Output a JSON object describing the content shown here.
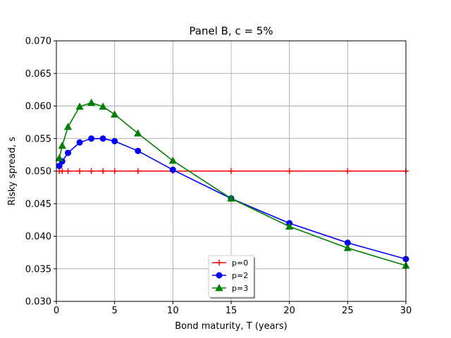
{
  "chart_data": {
    "type": "line",
    "title": "Panel B, c = 5%",
    "xlabel": "Bond maturity, T (years)",
    "ylabel": "Risky spread, s",
    "xlim": [
      0,
      30
    ],
    "ylim": [
      0.03,
      0.07
    ],
    "xticks": [
      0,
      5,
      10,
      15,
      20,
      25,
      30
    ],
    "xtick_labels": [
      "0",
      "5",
      "10",
      "15",
      "20",
      "25",
      "30"
    ],
    "yticks": [
      0.03,
      0.035,
      0.04,
      0.045,
      0.05,
      0.055,
      0.06,
      0.065,
      0.07
    ],
    "ytick_labels": [
      "0.030",
      "0.035",
      "0.040",
      "0.045",
      "0.050",
      "0.055",
      "0.060",
      "0.065",
      "0.070"
    ],
    "grid": true,
    "legend_position": "bottom-center",
    "series": [
      {
        "name": "p=0",
        "color": "#ff0000",
        "marker": "plus",
        "x": [
          0.25,
          0.5,
          1,
          2,
          3,
          4,
          5,
          7,
          10,
          15,
          20,
          25,
          30
        ],
        "y": [
          0.05,
          0.05,
          0.05,
          0.05,
          0.05,
          0.05,
          0.05,
          0.05,
          0.05,
          0.05,
          0.05,
          0.05,
          0.05
        ]
      },
      {
        "name": "p=2",
        "color": "#0000ff",
        "marker": "circle",
        "x": [
          0.25,
          0.5,
          1,
          2,
          3,
          4,
          5,
          7,
          10,
          15,
          20,
          25,
          30
        ],
        "y": [
          0.0508,
          0.0515,
          0.0528,
          0.0544,
          0.055,
          0.055,
          0.0546,
          0.0531,
          0.0502,
          0.0458,
          0.042,
          0.039,
          0.0365
        ]
      },
      {
        "name": "p=3",
        "color": "#008000",
        "marker": "triangle",
        "x": [
          0.25,
          0.5,
          1,
          2,
          3,
          4,
          5,
          7,
          10,
          15,
          20,
          25,
          30
        ],
        "y": [
          0.052,
          0.0539,
          0.0568,
          0.0599,
          0.0605,
          0.0599,
          0.0587,
          0.0558,
          0.0516,
          0.0458,
          0.0415,
          0.0382,
          0.0355
        ]
      }
    ]
  }
}
